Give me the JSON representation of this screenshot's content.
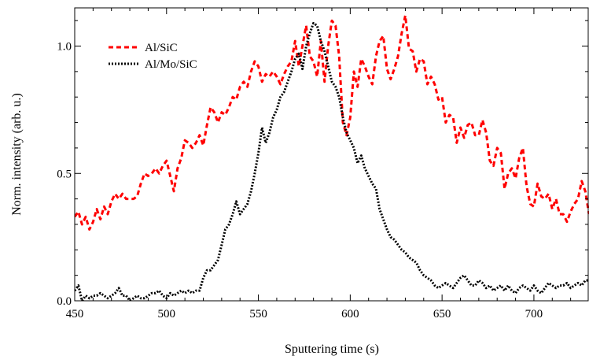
{
  "chart_data": {
    "type": "line",
    "title": "",
    "xlabel": "Sputtering time (s)",
    "ylabel": "Norm. intensity (arb. u.)",
    "xlim": [
      450,
      730
    ],
    "ylim": [
      0.0,
      1.15
    ],
    "x_ticks": [
      450,
      500,
      550,
      600,
      650,
      700
    ],
    "x_tick_labels": [
      "450",
      "500",
      "550",
      "600",
      "650",
      "700"
    ],
    "y_ticks": [
      0.0,
      0.5,
      1.0
    ],
    "y_tick_labels": [
      "0.0",
      "0.5",
      "1.0"
    ],
    "grid": false,
    "legend_position": "top-left",
    "series": [
      {
        "name": "Al/SiC",
        "color": "#ff0000",
        "dash": "dashed",
        "x": [
          450,
          452,
          454,
          456,
          458,
          460,
          462,
          464,
          466,
          468,
          470,
          472,
          474,
          476,
          478,
          480,
          482,
          484,
          486,
          488,
          490,
          492,
          494,
          496,
          498,
          500,
          502,
          504,
          506,
          508,
          510,
          512,
          514,
          516,
          518,
          520,
          522,
          524,
          526,
          528,
          530,
          532,
          534,
          536,
          538,
          540,
          542,
          544,
          546,
          548,
          550,
          552,
          554,
          556,
          558,
          560,
          562,
          564,
          566,
          568,
          570,
          572,
          574,
          576,
          578,
          580,
          582,
          584,
          586,
          588,
          590,
          592,
          594,
          596,
          598,
          600,
          602,
          604,
          606,
          608,
          610,
          612,
          614,
          616,
          618,
          620,
          622,
          624,
          626,
          628,
          630,
          632,
          634,
          636,
          638,
          640,
          642,
          644,
          646,
          648,
          650,
          652,
          654,
          656,
          658,
          660,
          662,
          664,
          666,
          668,
          670,
          672,
          674,
          676,
          678,
          680,
          682,
          684,
          686,
          688,
          690,
          692,
          694,
          696,
          698,
          700,
          702,
          704,
          706,
          708,
          710,
          712,
          714,
          716,
          718,
          720,
          722,
          724,
          726,
          728,
          730
        ],
        "values": [
          0.33,
          0.35,
          0.3,
          0.33,
          0.28,
          0.31,
          0.36,
          0.32,
          0.37,
          0.34,
          0.39,
          0.42,
          0.4,
          0.42,
          0.4,
          0.4,
          0.4,
          0.41,
          0.46,
          0.5,
          0.49,
          0.5,
          0.52,
          0.5,
          0.53,
          0.55,
          0.49,
          0.43,
          0.52,
          0.56,
          0.63,
          0.62,
          0.6,
          0.62,
          0.65,
          0.61,
          0.69,
          0.76,
          0.74,
          0.7,
          0.74,
          0.73,
          0.76,
          0.8,
          0.79,
          0.84,
          0.86,
          0.84,
          0.9,
          0.94,
          0.92,
          0.86,
          0.89,
          0.88,
          0.9,
          0.88,
          0.85,
          0.89,
          0.92,
          0.94,
          1.02,
          0.92,
          1.0,
          1.08,
          0.96,
          0.94,
          0.88,
          1.02,
          0.86,
          1.0,
          1.1,
          1.08,
          0.96,
          0.7,
          0.65,
          0.72,
          0.9,
          0.84,
          0.95,
          0.92,
          0.88,
          0.85,
          0.96,
          1.02,
          1.04,
          0.91,
          0.87,
          0.91,
          0.96,
          1.05,
          1.12,
          0.99,
          0.98,
          0.9,
          0.95,
          0.94,
          0.85,
          0.88,
          0.85,
          0.79,
          0.8,
          0.7,
          0.73,
          0.72,
          0.62,
          0.68,
          0.64,
          0.69,
          0.7,
          0.65,
          0.65,
          0.71,
          0.66,
          0.55,
          0.53,
          0.6,
          0.58,
          0.44,
          0.5,
          0.52,
          0.48,
          0.56,
          0.6,
          0.45,
          0.38,
          0.37,
          0.46,
          0.41,
          0.4,
          0.42,
          0.36,
          0.4,
          0.34,
          0.34,
          0.31,
          0.35,
          0.38,
          0.4,
          0.47,
          0.43,
          0.34
        ]
      },
      {
        "name": "Al/Mo/SiC",
        "color": "#000000",
        "dash": "dotted",
        "x": [
          450,
          452,
          454,
          456,
          458,
          460,
          462,
          464,
          466,
          468,
          470,
          472,
          474,
          476,
          478,
          480,
          482,
          484,
          486,
          488,
          490,
          492,
          494,
          496,
          498,
          500,
          502,
          504,
          506,
          508,
          510,
          512,
          514,
          516,
          518,
          520,
          522,
          524,
          526,
          528,
          530,
          532,
          534,
          536,
          538,
          540,
          542,
          544,
          546,
          548,
          550,
          552,
          554,
          556,
          558,
          560,
          562,
          564,
          566,
          568,
          570,
          572,
          574,
          576,
          578,
          580,
          582,
          584,
          586,
          588,
          590,
          592,
          594,
          596,
          598,
          600,
          602,
          604,
          606,
          608,
          610,
          612,
          614,
          616,
          618,
          620,
          622,
          624,
          626,
          628,
          630,
          632,
          634,
          636,
          638,
          640,
          642,
          644,
          646,
          648,
          650,
          652,
          654,
          656,
          658,
          660,
          662,
          664,
          666,
          668,
          670,
          672,
          674,
          676,
          678,
          680,
          682,
          684,
          686,
          688,
          690,
          692,
          694,
          696,
          698,
          700,
          702,
          704,
          706,
          708,
          710,
          712,
          714,
          716,
          718,
          720,
          722,
          724,
          726,
          728,
          730
        ],
        "values": [
          0.04,
          0.06,
          0.0,
          0.02,
          0.01,
          0.02,
          0.02,
          0.03,
          0.02,
          0.01,
          0.02,
          0.03,
          0.05,
          0.02,
          0.02,
          0.0,
          0.01,
          0.02,
          0.01,
          0.01,
          0.02,
          0.03,
          0.03,
          0.04,
          0.02,
          0.01,
          0.03,
          0.02,
          0.03,
          0.04,
          0.03,
          0.04,
          0.03,
          0.04,
          0.04,
          0.09,
          0.12,
          0.12,
          0.14,
          0.16,
          0.22,
          0.28,
          0.3,
          0.34,
          0.39,
          0.34,
          0.36,
          0.38,
          0.43,
          0.5,
          0.58,
          0.68,
          0.62,
          0.66,
          0.72,
          0.75,
          0.8,
          0.82,
          0.86,
          0.9,
          0.95,
          0.97,
          0.91,
          1.0,
          1.05,
          1.09,
          1.08,
          1.02,
          0.98,
          0.92,
          0.86,
          0.84,
          0.8,
          0.72,
          0.66,
          0.63,
          0.6,
          0.54,
          0.57,
          0.52,
          0.49,
          0.46,
          0.44,
          0.36,
          0.32,
          0.28,
          0.25,
          0.24,
          0.22,
          0.2,
          0.19,
          0.17,
          0.16,
          0.15,
          0.12,
          0.1,
          0.09,
          0.08,
          0.06,
          0.05,
          0.06,
          0.07,
          0.06,
          0.05,
          0.07,
          0.09,
          0.1,
          0.08,
          0.06,
          0.06,
          0.08,
          0.07,
          0.05,
          0.06,
          0.04,
          0.05,
          0.06,
          0.04,
          0.06,
          0.04,
          0.03,
          0.05,
          0.06,
          0.05,
          0.04,
          0.06,
          0.04,
          0.03,
          0.05,
          0.07,
          0.06,
          0.05,
          0.06,
          0.06,
          0.07,
          0.05,
          0.06,
          0.07,
          0.06,
          0.08,
          0.08
        ]
      }
    ]
  }
}
